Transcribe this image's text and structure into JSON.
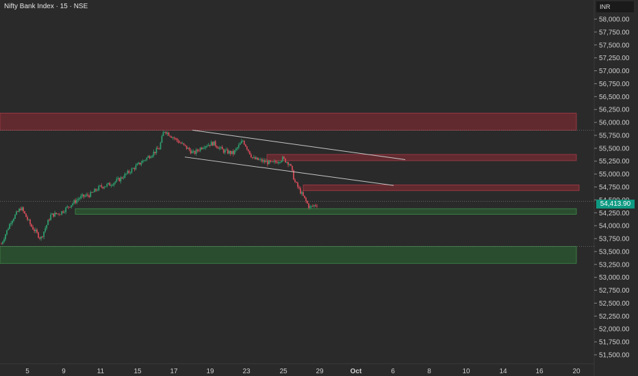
{
  "header": {
    "title": "Nifty Bank Index · 15 · NSE",
    "currency": "INR"
  },
  "colors": {
    "background": "#2a2a2a",
    "up_candle": "#2e9e6e",
    "down_candle": "#d24b58",
    "resistance_zone": "#6b2a30",
    "support_zone": "#2b5430",
    "trendline": "#c8c8c8",
    "last_price_tag": "#0e9982"
  },
  "chart_data": {
    "type": "candlestick",
    "symbol": "Nifty Bank Index",
    "interval": "15",
    "exchange": "NSE",
    "last_price": "54,413.90",
    "y_axis": {
      "range": [
        51400,
        58150
      ],
      "tick_labels": [
        "58,000.00",
        "57,750.00",
        "57,500.00",
        "57,250.00",
        "57,000.00",
        "56,750.00",
        "56,500.00",
        "56,250.00",
        "56,000.00",
        "55,750.00",
        "55,500.00",
        "55,250.00",
        "55,000.00",
        "54,750.00",
        "54,500.00",
        "54,250.00",
        "54,000.00",
        "53,750.00",
        "53,500.00",
        "53,250.00",
        "53,000.00",
        "52,750.00",
        "52,500.00",
        "52,250.00",
        "52,000.00",
        "51,750.00",
        "51,500.00"
      ]
    },
    "x_axis": {
      "tick_labels": [
        "5",
        "9",
        "11",
        "15",
        "17",
        "19",
        "23",
        "25",
        "29",
        "Oct",
        "6",
        "8",
        "10",
        "14",
        "16",
        "20"
      ]
    },
    "price_path": [
      [
        0,
        53650
      ],
      [
        2,
        54100
      ],
      [
        4,
        54350
      ],
      [
        6,
        54000
      ],
      [
        8,
        53750
      ],
      [
        10,
        54200
      ],
      [
        12,
        54250
      ],
      [
        14,
        54400
      ],
      [
        16,
        54550
      ],
      [
        18,
        54600
      ],
      [
        20,
        54750
      ],
      [
        22,
        54800
      ],
      [
        24,
        54900
      ],
      [
        26,
        55050
      ],
      [
        28,
        55200
      ],
      [
        30,
        55350
      ],
      [
        32,
        55500
      ],
      [
        33,
        55850
      ],
      [
        35,
        55700
      ],
      [
        37,
        55550
      ],
      [
        39,
        55400
      ],
      [
        41,
        55550
      ],
      [
        43,
        55600
      ],
      [
        45,
        55450
      ],
      [
        47,
        55400
      ],
      [
        49,
        55650
      ],
      [
        51,
        55300
      ],
      [
        53,
        55250
      ],
      [
        55,
        55200
      ],
      [
        57,
        55300
      ],
      [
        58.5,
        55200
      ],
      [
        59.5,
        54850
      ],
      [
        61,
        54600
      ],
      [
        62.5,
        54350
      ],
      [
        64,
        54413.9
      ]
    ],
    "zones": [
      {
        "kind": "resistance",
        "from_x": 0,
        "to_x": 118,
        "low": 55850,
        "high": 56180
      },
      {
        "kind": "resistance",
        "from_x": 52,
        "to_x": 118,
        "low": 55260,
        "high": 55380
      },
      {
        "kind": "resistance",
        "from_x": 61,
        "to_x": 118,
        "low": 54680,
        "high": 54790
      },
      {
        "kind": "support",
        "from_x": 14,
        "to_x": 118,
        "low": 54220,
        "high": 54330
      },
      {
        "kind": "support",
        "from_x": 0,
        "to_x": 118,
        "low": 53270,
        "high": 53600
      }
    ],
    "trendlines": [
      {
        "from": [
          33,
          55850
        ],
        "to": [
          83,
          55280
        ]
      },
      {
        "from": [
          31,
          55330
        ],
        "to": [
          81,
          54780
        ]
      }
    ],
    "dashed_levels": [
      55850,
      54470,
      53600
    ]
  }
}
